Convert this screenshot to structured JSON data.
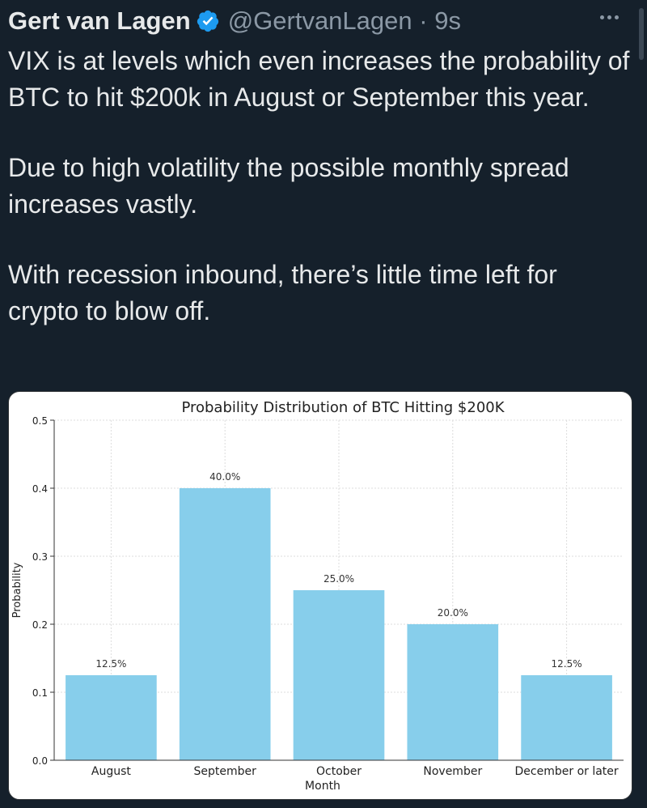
{
  "tweet": {
    "author_name": "Gert van Lagen",
    "handle": "@GertvanLagen",
    "separator": "·",
    "time": "9s",
    "paragraphs": [
      "VIX is at levels which even increases the probability of BTC to hit $200k in August or September this year.",
      "Due to high volatility the possible monthly spread increases vastly.",
      "With recession inbound, there’s little time left for crypto to blow off."
    ]
  },
  "icons": {
    "verified": "verified-badge-icon",
    "more": "more-options-icon"
  },
  "colors": {
    "background": "#15202b",
    "text": "#e7e9ea",
    "muted": "#8b98a5",
    "verified": "#1d9bf0",
    "bar": "#87ceeb"
  },
  "chart_data": {
    "type": "bar",
    "title": "Probability Distribution of BTC Hitting $200K",
    "xlabel": "Month",
    "ylabel": "Probability",
    "categories": [
      "August",
      "September",
      "October",
      "November",
      "December or later"
    ],
    "values": [
      0.125,
      0.4,
      0.25,
      0.2,
      0.125
    ],
    "data_labels": [
      "12.5%",
      "40.0%",
      "25.0%",
      "20.0%",
      "12.5%"
    ],
    "ylim": [
      0,
      0.5
    ],
    "yticks": [
      0.0,
      0.1,
      0.2,
      0.3,
      0.4,
      0.5
    ],
    "ytick_labels": [
      "0.0",
      "0.1",
      "0.2",
      "0.3",
      "0.4",
      "0.5"
    ],
    "grid": true
  }
}
